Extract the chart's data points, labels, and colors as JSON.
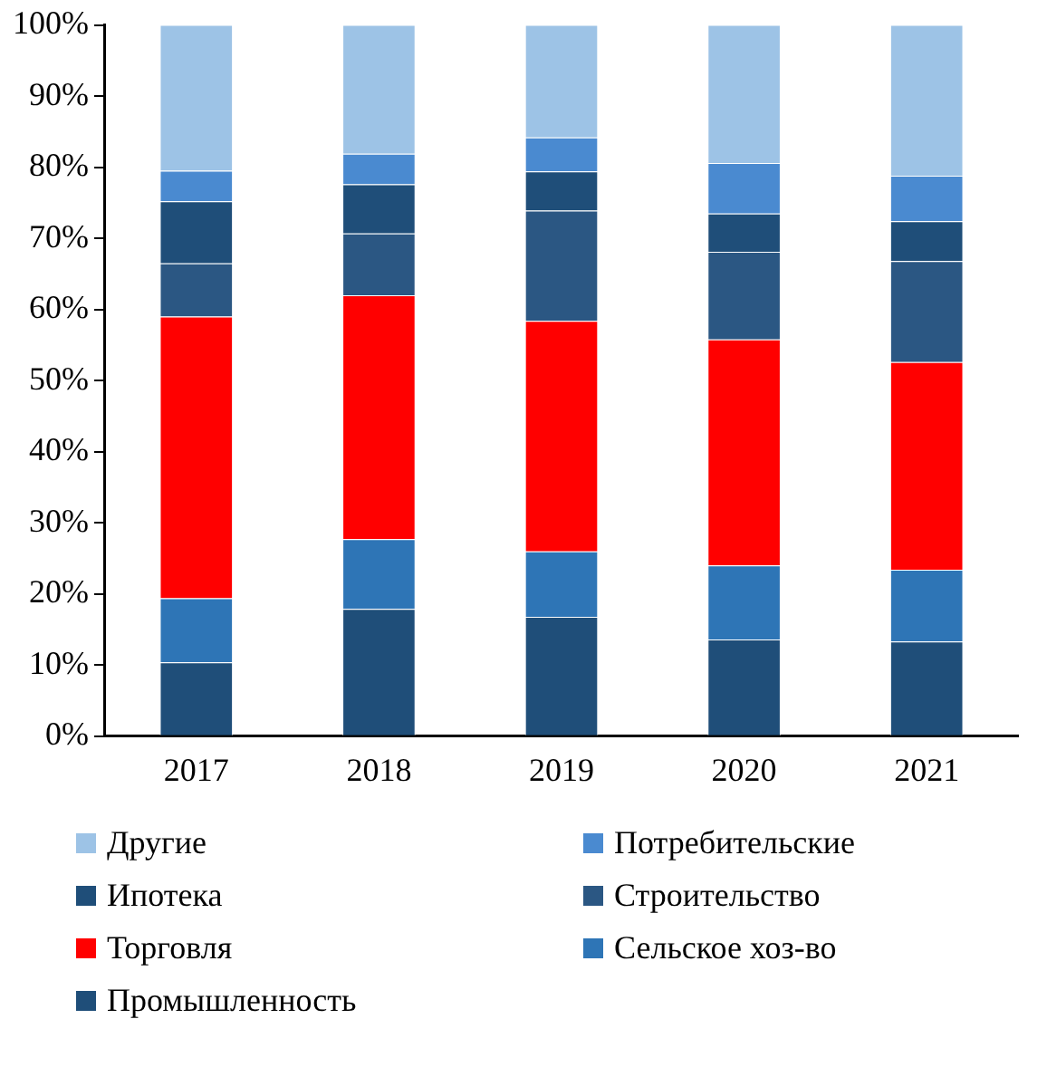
{
  "chart_data": {
    "type": "bar",
    "stacked": true,
    "categories": [
      "2017",
      "2018",
      "2019",
      "2020",
      "2021"
    ],
    "ylim": [
      0,
      100
    ],
    "yticks": [
      {
        "value": 0,
        "label": "0%"
      },
      {
        "value": 10,
        "label": "10%"
      },
      {
        "value": 20,
        "label": "20%"
      },
      {
        "value": 30,
        "label": "30%"
      },
      {
        "value": 40,
        "label": "40%"
      },
      {
        "value": 50,
        "label": "50%"
      },
      {
        "value": 60,
        "label": "60%"
      },
      {
        "value": 70,
        "label": "70%"
      },
      {
        "value": 80,
        "label": "80%"
      },
      {
        "value": 90,
        "label": "90%"
      },
      {
        "value": 100,
        "label": "100%"
      }
    ],
    "grid": false,
    "legend": "bottom",
    "series": [
      {
        "name": "Промышленность",
        "color": "#1f4e79",
        "values": [
          10.4,
          17.9,
          16.8,
          13.6,
          13.3
        ]
      },
      {
        "name": "Сельское хоз-во",
        "color": "#2e75b6",
        "values": [
          9.0,
          9.8,
          9.2,
          10.4,
          10.1
        ]
      },
      {
        "name": "Торговля",
        "color": "#ff0000",
        "values": [
          39.6,
          34.3,
          32.4,
          31.8,
          29.2
        ]
      },
      {
        "name": "Строительство",
        "color": "#2b5783",
        "values": [
          7.5,
          8.7,
          15.5,
          12.3,
          14.2
        ]
      },
      {
        "name": "Ипотека",
        "color": "#1f4e79",
        "values": [
          8.7,
          6.9,
          5.5,
          5.4,
          5.6
        ]
      },
      {
        "name": "Потребительские",
        "color": "#4a8ad0",
        "values": [
          4.3,
          4.3,
          4.8,
          7.1,
          6.4
        ]
      },
      {
        "name": "Другие",
        "color": "#9dc3e6",
        "values": [
          20.5,
          18.1,
          15.8,
          19.4,
          21.2
        ]
      }
    ]
  }
}
